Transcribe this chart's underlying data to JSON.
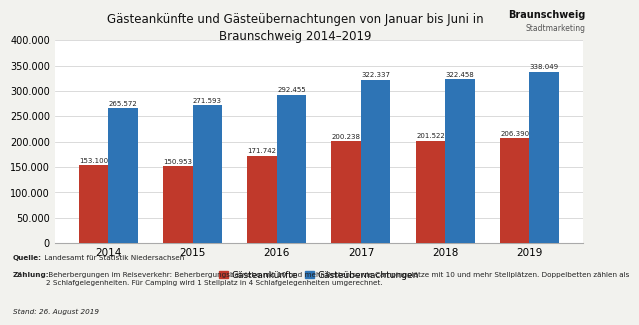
{
  "title_line1": "Gästeankünfte und Gästeübernachtungen von Januar bis Juni in",
  "title_line2": "Braunschweig 2014–2019",
  "years": [
    "2014",
    "2015",
    "2016",
    "2017",
    "2018",
    "2019"
  ],
  "gaesteankunfte": [
    153100,
    150953,
    171742,
    200238,
    201522,
    206390
  ],
  "gaesteuebernachtungen": [
    265572,
    271593,
    292455,
    322337,
    322458,
    338049
  ],
  "bar_color_red": "#c0392b",
  "bar_color_blue": "#2e74b5",
  "legend_red": "Gästeankünfte",
  "legend_blue": "Gästeübernachtungen",
  "ylim": [
    0,
    400000
  ],
  "yticks": [
    0,
    50000,
    100000,
    150000,
    200000,
    250000,
    300000,
    350000,
    400000
  ],
  "background_color": "#f2f2ee",
  "plot_background": "#ffffff",
  "logo_text_line1": "Braunschweig",
  "logo_text_line2": "Stadtmarketing",
  "source_bold": "Quelle:",
  "source_rest": " Landesamt für Statistik Niedersachsen",
  "zaehlung_bold": "Zählung:",
  "zaehlung_rest": " Beherbergungen im Reiseverkehr: Beherbergungsbetriebe mit 10 und mehr Betten sowie Campingplätze mit 10 und mehr Stellplätzen. Doppelbetten zählen als\n2 Schlafgelegenheiten. Für Camping wird 1 Stellplatz in 4 Schlafgelegenheiten umgerechnet.",
  "stand_text": "Stand: 26. August 2019"
}
